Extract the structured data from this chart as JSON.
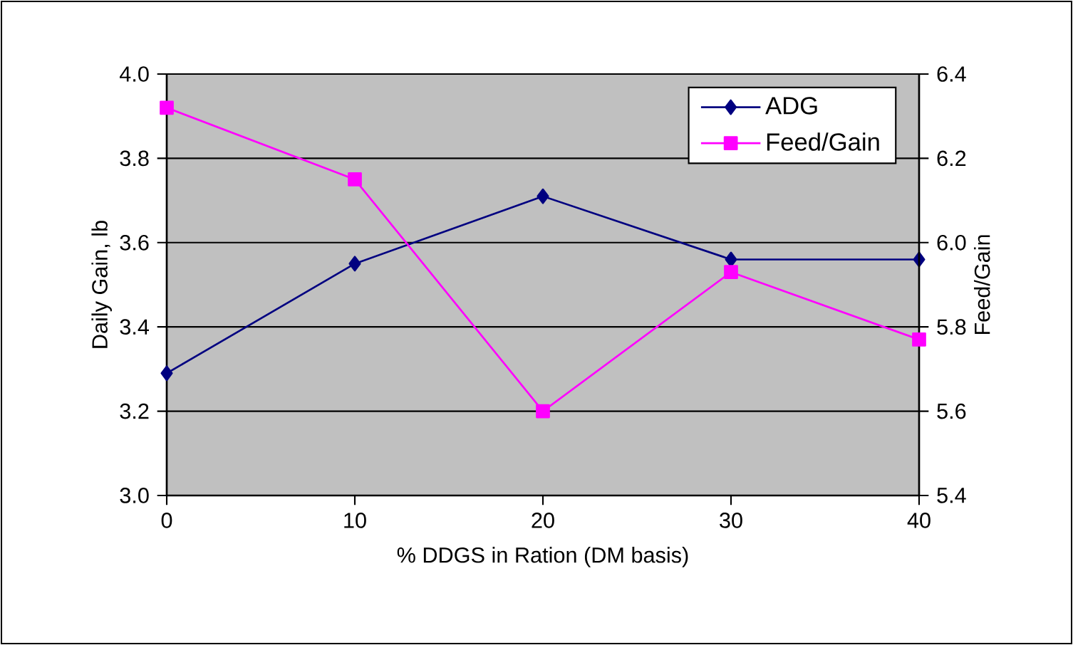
{
  "chart_data": {
    "type": "line",
    "xlabel": "% DDGS in Ration (DM basis)",
    "ylabel": "Daily Gain, lb",
    "y2label": "Feed/Gain",
    "x": [
      0,
      10,
      20,
      30,
      40
    ],
    "xlim": [
      0,
      40
    ],
    "xticks": [
      0,
      10,
      20,
      30,
      40
    ],
    "ylim": [
      3.0,
      4.0
    ],
    "yticks": [
      {
        "value": 3.0,
        "label": "3.0"
      },
      {
        "value": 3.2,
        "label": "3.2"
      },
      {
        "value": 3.4,
        "label": "3.4"
      },
      {
        "value": 3.6,
        "label": "3.6"
      },
      {
        "value": 3.8,
        "label": "3.8"
      },
      {
        "value": 4.0,
        "label": "4.0"
      }
    ],
    "y2lim": [
      5.4,
      6.4
    ],
    "y2ticks": [
      {
        "value": 5.4,
        "label": "5.4"
      },
      {
        "value": 5.6,
        "label": "5.6"
      },
      {
        "value": 5.8,
        "label": "5.8"
      },
      {
        "value": 6.0,
        "label": "6.0"
      },
      {
        "value": 6.2,
        "label": "6.2"
      },
      {
        "value": 6.4,
        "label": "6.4"
      }
    ],
    "grid": "y",
    "legend": "top right",
    "line_style": "solid",
    "series": [
      {
        "name": "ADG",
        "color": "#000080",
        "marker": "diamond",
        "values": [
          3.29,
          3.55,
          3.71,
          3.56,
          3.56
        ]
      },
      {
        "name": "Feed/Gain",
        "color": "#ff00ff",
        "marker": "square",
        "axis": "y2",
        "values": [
          6.32,
          6.15,
          5.6,
          5.93,
          5.77
        ]
      }
    ]
  }
}
